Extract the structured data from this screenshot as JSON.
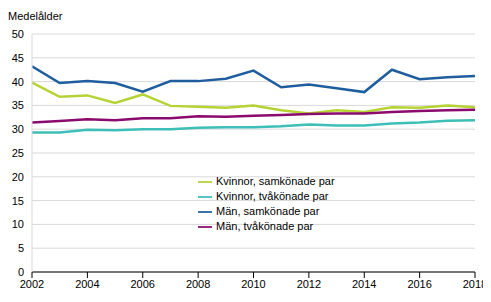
{
  "chart_data": {
    "type": "line",
    "y_label": "Medelålder",
    "x": [
      2002,
      2003,
      2004,
      2005,
      2006,
      2007,
      2008,
      2009,
      2010,
      2011,
      2012,
      2013,
      2014,
      2015,
      2016,
      2017,
      2018
    ],
    "series": [
      {
        "name": "Män, samkönade par",
        "color": "#1f5e9e",
        "values": [
          43.2,
          39.7,
          40.1,
          39.7,
          37.9,
          40.1,
          40.1,
          40.6,
          42.3,
          38.8,
          39.4,
          38.6,
          37.8,
          42.5,
          40.5,
          40.9,
          41.2
        ]
      },
      {
        "name": "Kvinnor, samkönade par",
        "color": "#b5d334",
        "values": [
          39.8,
          36.8,
          37.1,
          35.5,
          37.3,
          34.9,
          34.7,
          34.5,
          35.0,
          34.0,
          33.3,
          34.0,
          33.6,
          34.6,
          34.5,
          35.0,
          34.6
        ]
      },
      {
        "name": "Män, tvåkönade par",
        "color": "#8b0a6e",
        "values": [
          31.4,
          31.7,
          32.1,
          31.9,
          32.3,
          32.3,
          32.7,
          32.6,
          32.8,
          33.0,
          33.2,
          33.3,
          33.3,
          33.6,
          33.8,
          34.0,
          34.1
        ]
      },
      {
        "name": "Kvinnor, tvåkönade par",
        "color": "#3dbfb8",
        "values": [
          29.3,
          29.3,
          29.9,
          29.8,
          30.0,
          30.0,
          30.3,
          30.4,
          30.4,
          30.6,
          31.0,
          30.8,
          30.8,
          31.2,
          31.4,
          31.8,
          31.9
        ]
      }
    ],
    "xlim": [
      2002,
      2018
    ],
    "xticks": [
      2002,
      2004,
      2006,
      2008,
      2010,
      2012,
      2014,
      2016,
      2018
    ],
    "ylim": [
      0,
      50
    ],
    "yticks": [
      0,
      5,
      10,
      15,
      20,
      25,
      30,
      35,
      40,
      45,
      50
    ],
    "grid": true,
    "legend": "center"
  }
}
